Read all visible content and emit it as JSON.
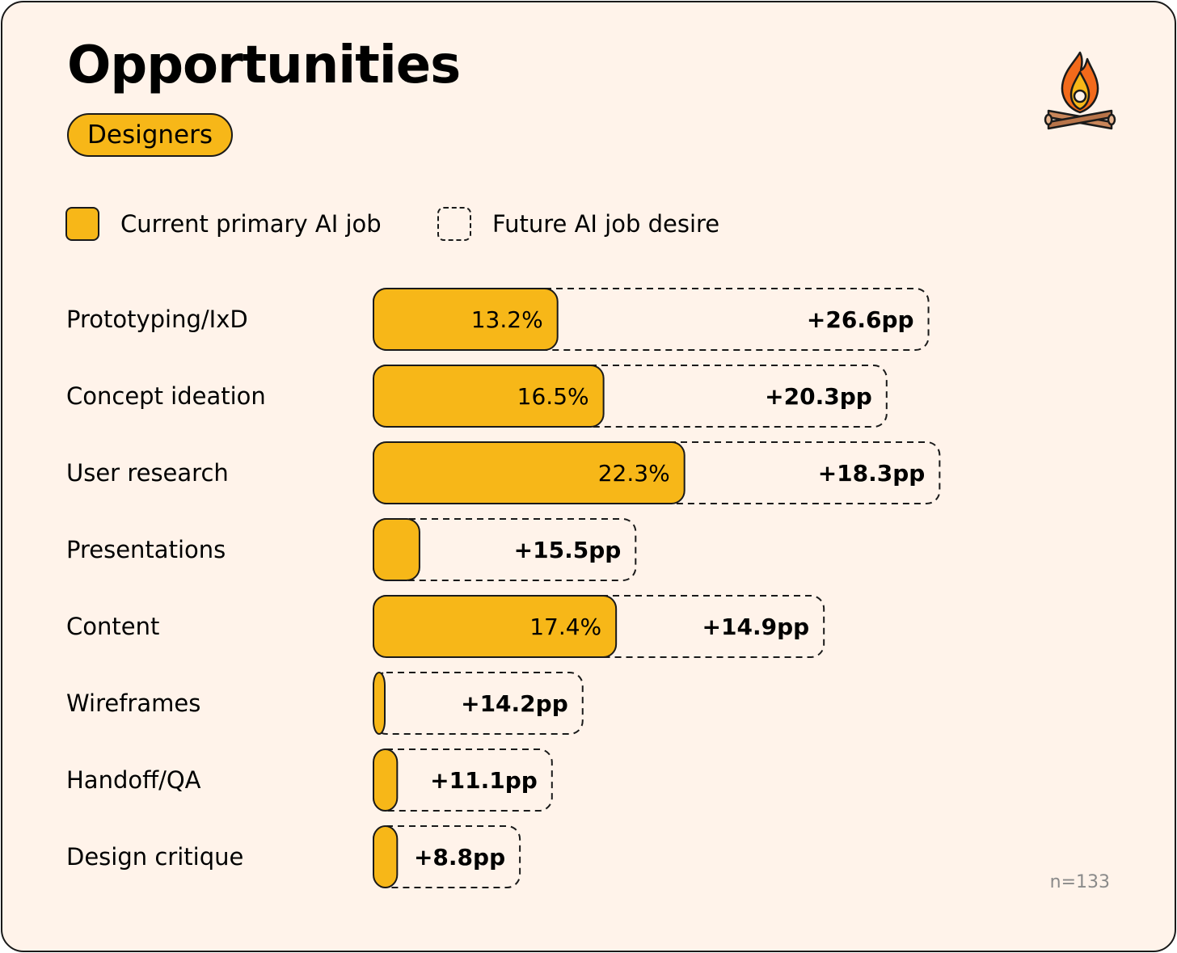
{
  "title": "Opportunities",
  "badge": "Designers",
  "legend": {
    "current": "Current primary AI job",
    "future": "Future AI job desire"
  },
  "footnote": "n=133",
  "icon": "campfire-icon",
  "colors": {
    "current": "#f7b718",
    "outline": "#1a1a1a",
    "background": "#fff3ea"
  },
  "chart_data": {
    "type": "bar",
    "orientation": "horizontal",
    "stacked": true,
    "categories": [
      "Prototyping/IxD",
      "Concept ideation",
      "User research",
      "Presentations",
      "Content",
      "Wireframes",
      "Handoff/QA",
      "Design critique"
    ],
    "series": [
      {
        "name": "Current primary AI job",
        "values": [
          13.2,
          16.5,
          22.3,
          3.3,
          17.4,
          0.8,
          1.7,
          1.7
        ],
        "labels": [
          "13.2%",
          "16.5%",
          "22.3%",
          "",
          "17.4%",
          "",
          "",
          ""
        ]
      },
      {
        "name": "Future AI job desire",
        "values": [
          26.6,
          20.3,
          18.3,
          15.5,
          14.9,
          14.2,
          11.1,
          8.8
        ],
        "labels": [
          "+26.6pp",
          "+20.3pp",
          "+18.3pp",
          "+15.5pp",
          "+14.9pp",
          "+14.2pp",
          "+11.1pp",
          "+8.8pp"
        ]
      }
    ]
  }
}
